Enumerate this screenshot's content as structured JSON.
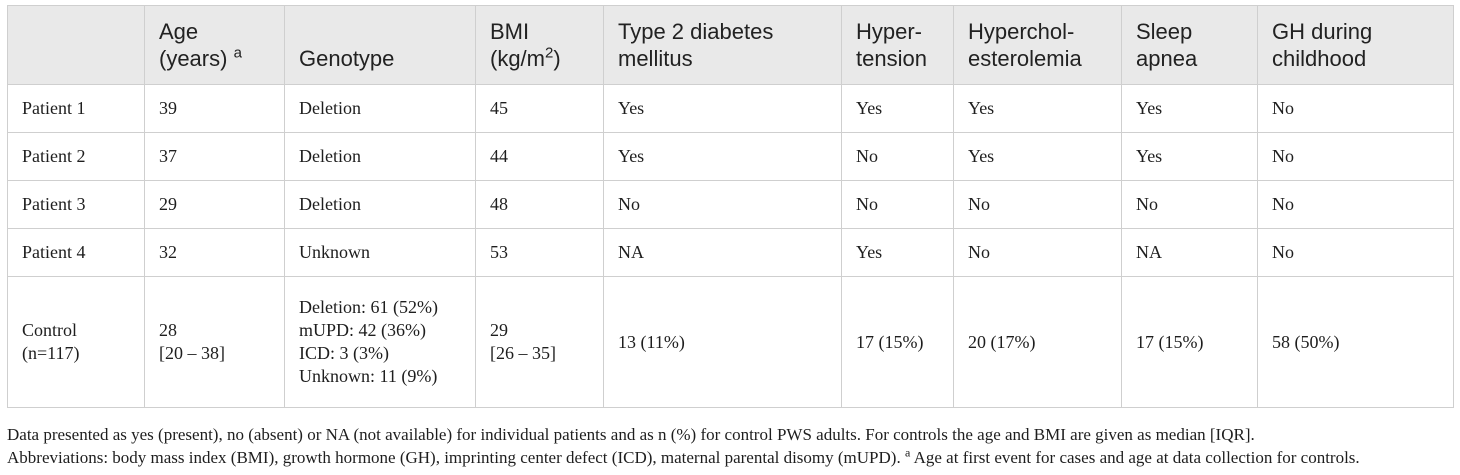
{
  "table": {
    "headers": [
      {
        "lines": [
          "",
          ""
        ]
      },
      {
        "lines": [
          "Age",
          "(years)"
        ],
        "sup": "a"
      },
      {
        "lines": [
          "",
          "Genotype"
        ]
      },
      {
        "lines": [
          "BMI",
          "(kg/m"
        ],
        "sup2": "2",
        "tail": ")"
      },
      {
        "lines": [
          "Type 2 diabetes",
          "mellitus"
        ]
      },
      {
        "lines": [
          "Hyper-",
          "tension"
        ]
      },
      {
        "lines": [
          "Hyperchol-",
          "esterolemia"
        ]
      },
      {
        "lines": [
          "Sleep",
          "apnea"
        ]
      },
      {
        "lines": [
          "GH during",
          "childhood"
        ]
      }
    ],
    "rows": [
      [
        "Patient 1",
        "39",
        "Deletion",
        "45",
        "Yes",
        "Yes",
        "Yes",
        "Yes",
        "No"
      ],
      [
        "Patient 2",
        "37",
        "Deletion",
        "44",
        "Yes",
        "No",
        "Yes",
        "Yes",
        "No"
      ],
      [
        "Patient 3",
        "29",
        "Deletion",
        "48",
        "No",
        "No",
        "No",
        "No",
        "No"
      ],
      [
        "Patient 4",
        "32",
        "Unknown",
        "53",
        "NA",
        "Yes",
        "No",
        "NA",
        "No"
      ]
    ],
    "control": {
      "label": [
        "Control",
        "(n=117)"
      ],
      "age": [
        "28",
        "[20 – 38]"
      ],
      "genotype": [
        "Deletion: 61 (52%)",
        "mUPD: 42 (36%)",
        "ICD: 3 (3%)",
        "Unknown: 11 (9%)"
      ],
      "bmi": [
        "29",
        "[26 – 35]"
      ],
      "t2dm": "13 (11%)",
      "hypertension": "17 (15%)",
      "hypercholesterolemia": "20 (17%)",
      "sleep_apnea": "17 (15%)",
      "gh_childhood": "58 (50%)"
    }
  },
  "footnote": {
    "line1": "Data presented as yes (present), no (absent) or NA (not available) for individual patients and as n (%) for control PWS adults. For controls the age and BMI are given as median [IQR].",
    "line2_pre": "Abbreviations: body mass index (BMI), growth hormone (GH), imprinting center defect (ICD), maternal parental disomy (mUPD).",
    "line2_sup": "a",
    "line2_post": " Age at first event for cases and age at data collection for controls."
  }
}
